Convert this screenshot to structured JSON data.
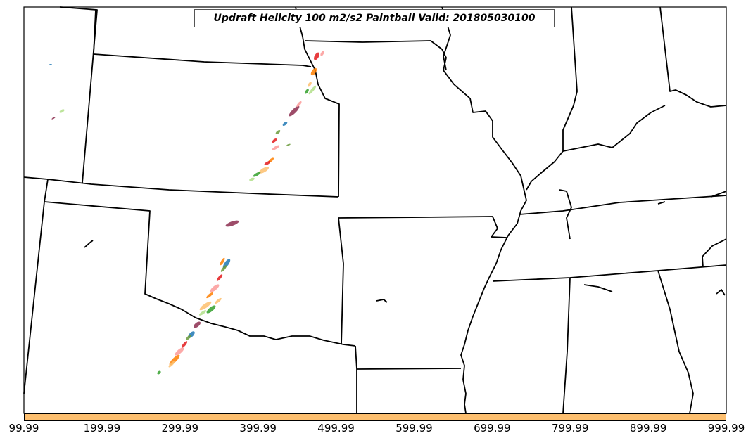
{
  "title": "Updraft Helicity 100 m2/s2 Paintball Valid: 201805030100",
  "colorbar": {
    "color": "#fdbf6f",
    "tick_labels": [
      "99.99",
      "199.99",
      "299.99",
      "399.99",
      "499.99",
      "599.99",
      "699.99",
      "799.99",
      "899.99",
      "999.99"
    ]
  },
  "paintball_colors": [
    "#e31a1c",
    "#fb9a99",
    "#ff7f00",
    "#fdbf6f",
    "#33a02c",
    "#b2df8a",
    "#8c2d4f",
    "#1f78b4",
    "#6a9a3a"
  ]
}
